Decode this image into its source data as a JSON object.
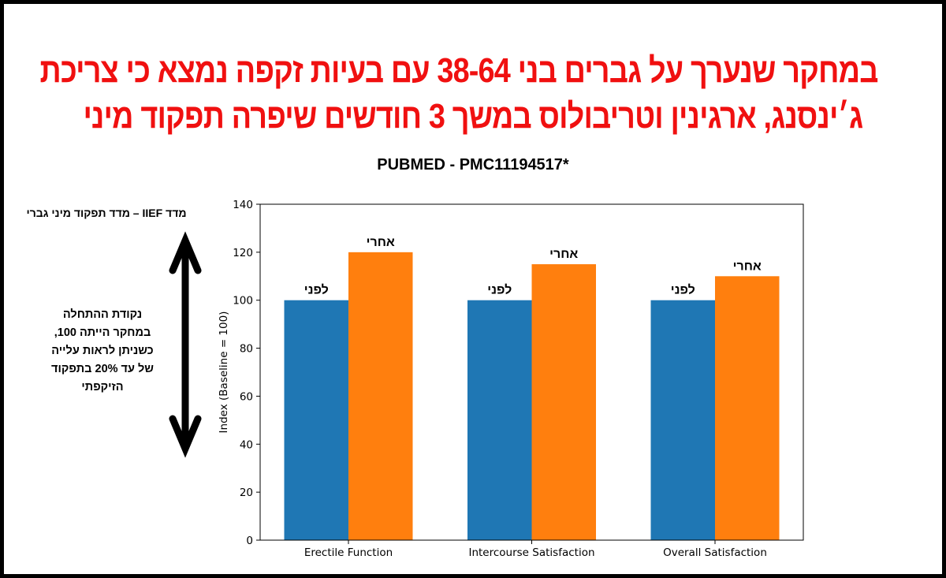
{
  "title_lines": [
    "במחקר שנערך על גברים בני 38-64 עם בעיות זקפה נמצא כי צריכת",
    "ג׳ינסנג, ארגינין וטריבולוס במשך 3 חודשים שיפרה תפקוד מיני"
  ],
  "source": "PUBMED - PMC11194517*",
  "side_note": {
    "heading": "מדד IIEF – מדד תפקוד מיני גברי",
    "lines": [
      "נקודת ההתחלה",
      "במחקר הייתה 100,",
      "כשניתן לראות עלייה",
      "של עד 20% בתפקוד",
      "הזיקפתי"
    ],
    "arrow_icon": "double-arrow-vertical-icon"
  },
  "chart_data": {
    "type": "bar",
    "categories": [
      "Erectile Function",
      "Intercourse Satisfaction",
      "Overall Satisfaction"
    ],
    "series": [
      {
        "name": "לפני",
        "values": [
          100,
          100,
          100
        ],
        "color": "#1f77b4"
      },
      {
        "name": "אחרי",
        "values": [
          120,
          115,
          110
        ],
        "color": "#ff7f0e"
      }
    ],
    "ylabel": "Index (Baseline = 100)",
    "xlabel": "",
    "ylim": [
      0,
      140
    ],
    "yticks": [
      0,
      20,
      40,
      60,
      80,
      100,
      120,
      140
    ],
    "grid": false,
    "legend": "none"
  }
}
